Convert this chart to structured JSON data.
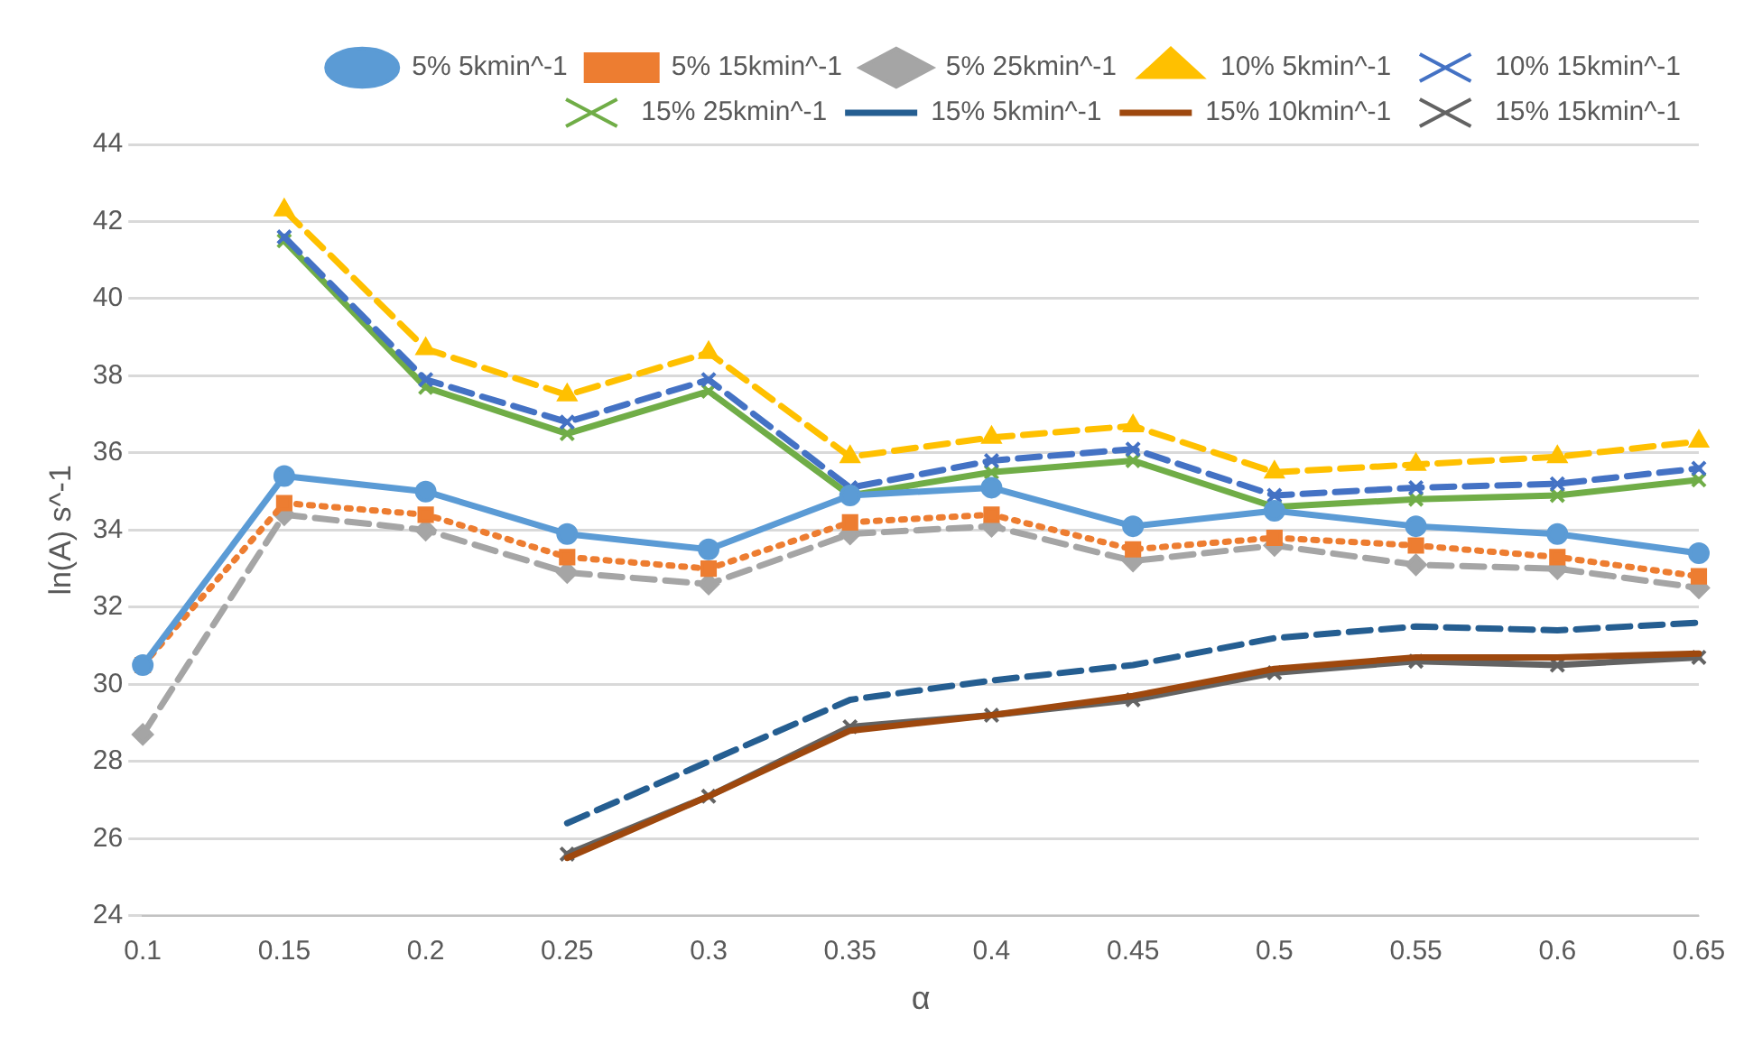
{
  "chart_data": {
    "type": "line",
    "xlabel": "α",
    "ylabel": "ln(A) s^-1",
    "categories": [
      "0.1",
      "0.15",
      "0.2",
      "0.25",
      "0.3",
      "0.35",
      "0.4",
      "0.45",
      "0.5",
      "0.55",
      "0.6",
      "0.65"
    ],
    "ylim": [
      24,
      44
    ],
    "yticks": [
      24,
      26,
      28,
      30,
      32,
      34,
      36,
      38,
      40,
      42,
      44
    ],
    "grid": "y",
    "legend": "top right",
    "series": [
      {
        "name": "5% 5kmin^-1",
        "color": "#5b9bd5",
        "marker": "circle",
        "line_style": "solid",
        "values": [
          30.5,
          35.4,
          35.0,
          33.9,
          33.5,
          34.9,
          35.1,
          34.1,
          34.5,
          34.1,
          33.9,
          33.4
        ]
      },
      {
        "name": "5% 15kmin^-1",
        "color": "#ed7d31",
        "marker": "square",
        "line_style": "dotted",
        "values": [
          30.5,
          34.7,
          34.4,
          33.3,
          33.0,
          34.2,
          34.4,
          33.5,
          33.8,
          33.6,
          33.3,
          32.8
        ]
      },
      {
        "name": "5% 25kmin^-1",
        "color": "#a5a5a5",
        "marker": "diamond",
        "line_style": "dashed",
        "values": [
          28.7,
          34.4,
          34.0,
          32.9,
          32.6,
          33.9,
          34.1,
          33.2,
          33.6,
          33.1,
          33.0,
          32.5
        ]
      },
      {
        "name": "10% 5kmin^-1",
        "color": "#ffc000",
        "marker": "triangle",
        "line_style": "dashed",
        "values": [
          null,
          42.3,
          38.7,
          37.5,
          38.6,
          35.9,
          36.4,
          36.7,
          35.5,
          35.7,
          35.9,
          36.3
        ]
      },
      {
        "name": "10% 15kmin^-1",
        "color": "#4472c4",
        "marker": "cross",
        "line_style": "dashed",
        "values": [
          null,
          41.6,
          37.9,
          36.8,
          37.9,
          35.1,
          35.8,
          36.1,
          34.9,
          35.1,
          35.2,
          35.6
        ]
      },
      {
        "name": "15% 25kmin^-1",
        "color": "#70ad47",
        "marker": "cross",
        "line_style": "solid",
        "values": [
          null,
          41.5,
          37.7,
          36.5,
          37.6,
          34.9,
          35.5,
          35.8,
          34.6,
          34.8,
          34.9,
          35.3
        ]
      },
      {
        "name": "15% 5kmin^-1",
        "color": "#255e91",
        "marker": "none",
        "line_style": "dashed",
        "values": [
          null,
          null,
          null,
          26.4,
          28.0,
          29.6,
          30.1,
          30.5,
          31.2,
          31.5,
          31.4,
          31.6
        ]
      },
      {
        "name": "15% 10kmin^-1",
        "color": "#9e480e",
        "marker": "none",
        "line_style": "solid",
        "values": [
          null,
          null,
          null,
          25.5,
          27.1,
          28.8,
          29.2,
          29.7,
          30.4,
          30.7,
          30.7,
          30.8
        ]
      },
      {
        "name": "15% 15kmin^-1",
        "color": "#636363",
        "marker": "cross",
        "line_style": "solid",
        "values": [
          null,
          null,
          null,
          25.6,
          27.1,
          28.9,
          29.2,
          29.6,
          30.3,
          30.6,
          30.5,
          30.7
        ]
      }
    ]
  }
}
